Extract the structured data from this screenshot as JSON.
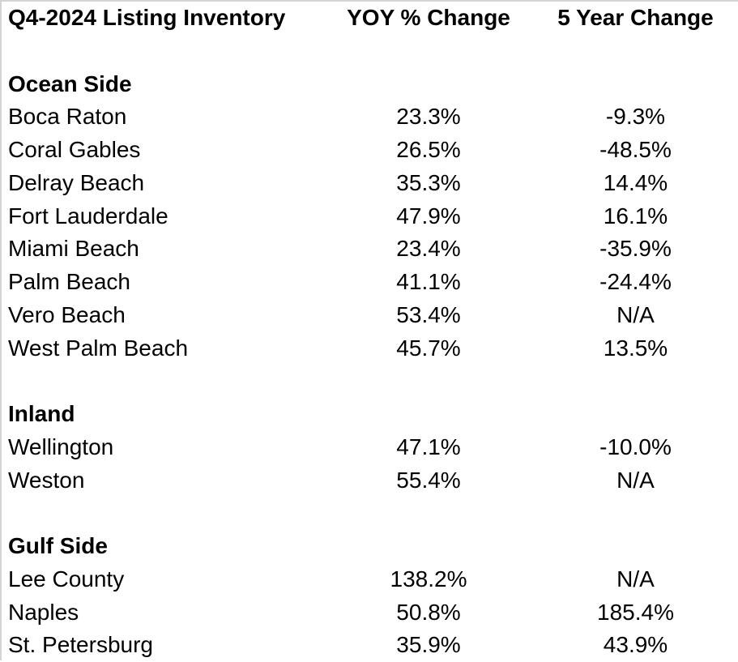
{
  "styles": {
    "background": "#ffffff",
    "text_color": "#000000",
    "edge_line_color": "#d4d4d4"
  },
  "chart_data": {
    "type": "table",
    "title": "Q4-2024 Listing Inventory",
    "columns": {
      "market": "Q4-2024 Listing Inventory",
      "yoy": "YOY % Change",
      "five_year": "5 Year Change"
    },
    "sections": [
      {
        "name": "Ocean Side",
        "rows": [
          {
            "market": "Boca Raton",
            "yoy": "23.3%",
            "five_year": "-9.3%"
          },
          {
            "market": "Coral Gables",
            "yoy": "26.5%",
            "five_year": "-48.5%"
          },
          {
            "market": "Delray Beach",
            "yoy": "35.3%",
            "five_year": "14.4%"
          },
          {
            "market": "Fort Lauderdale",
            "yoy": "47.9%",
            "five_year": "16.1%"
          },
          {
            "market": "Miami Beach",
            "yoy": "23.4%",
            "five_year": "-35.9%"
          },
          {
            "market": "Palm Beach",
            "yoy": "41.1%",
            "five_year": "-24.4%"
          },
          {
            "market": "Vero Beach",
            "yoy": "53.4%",
            "five_year": "N/A"
          },
          {
            "market": "West Palm Beach",
            "yoy": "45.7%",
            "five_year": "13.5%"
          }
        ]
      },
      {
        "name": "Inland",
        "rows": [
          {
            "market": "Wellington",
            "yoy": "47.1%",
            "five_year": "-10.0%"
          },
          {
            "market": "Weston",
            "yoy": "55.4%",
            "five_year": "N/A"
          }
        ]
      },
      {
        "name": "Gulf Side",
        "rows": [
          {
            "market": "Lee County",
            "yoy": "138.2%",
            "five_year": "N/A"
          },
          {
            "market": "Naples",
            "yoy": "50.8%",
            "five_year": "185.4%"
          },
          {
            "market": "St. Petersburg",
            "yoy": "35.9%",
            "five_year": "43.9%"
          }
        ]
      }
    ]
  }
}
